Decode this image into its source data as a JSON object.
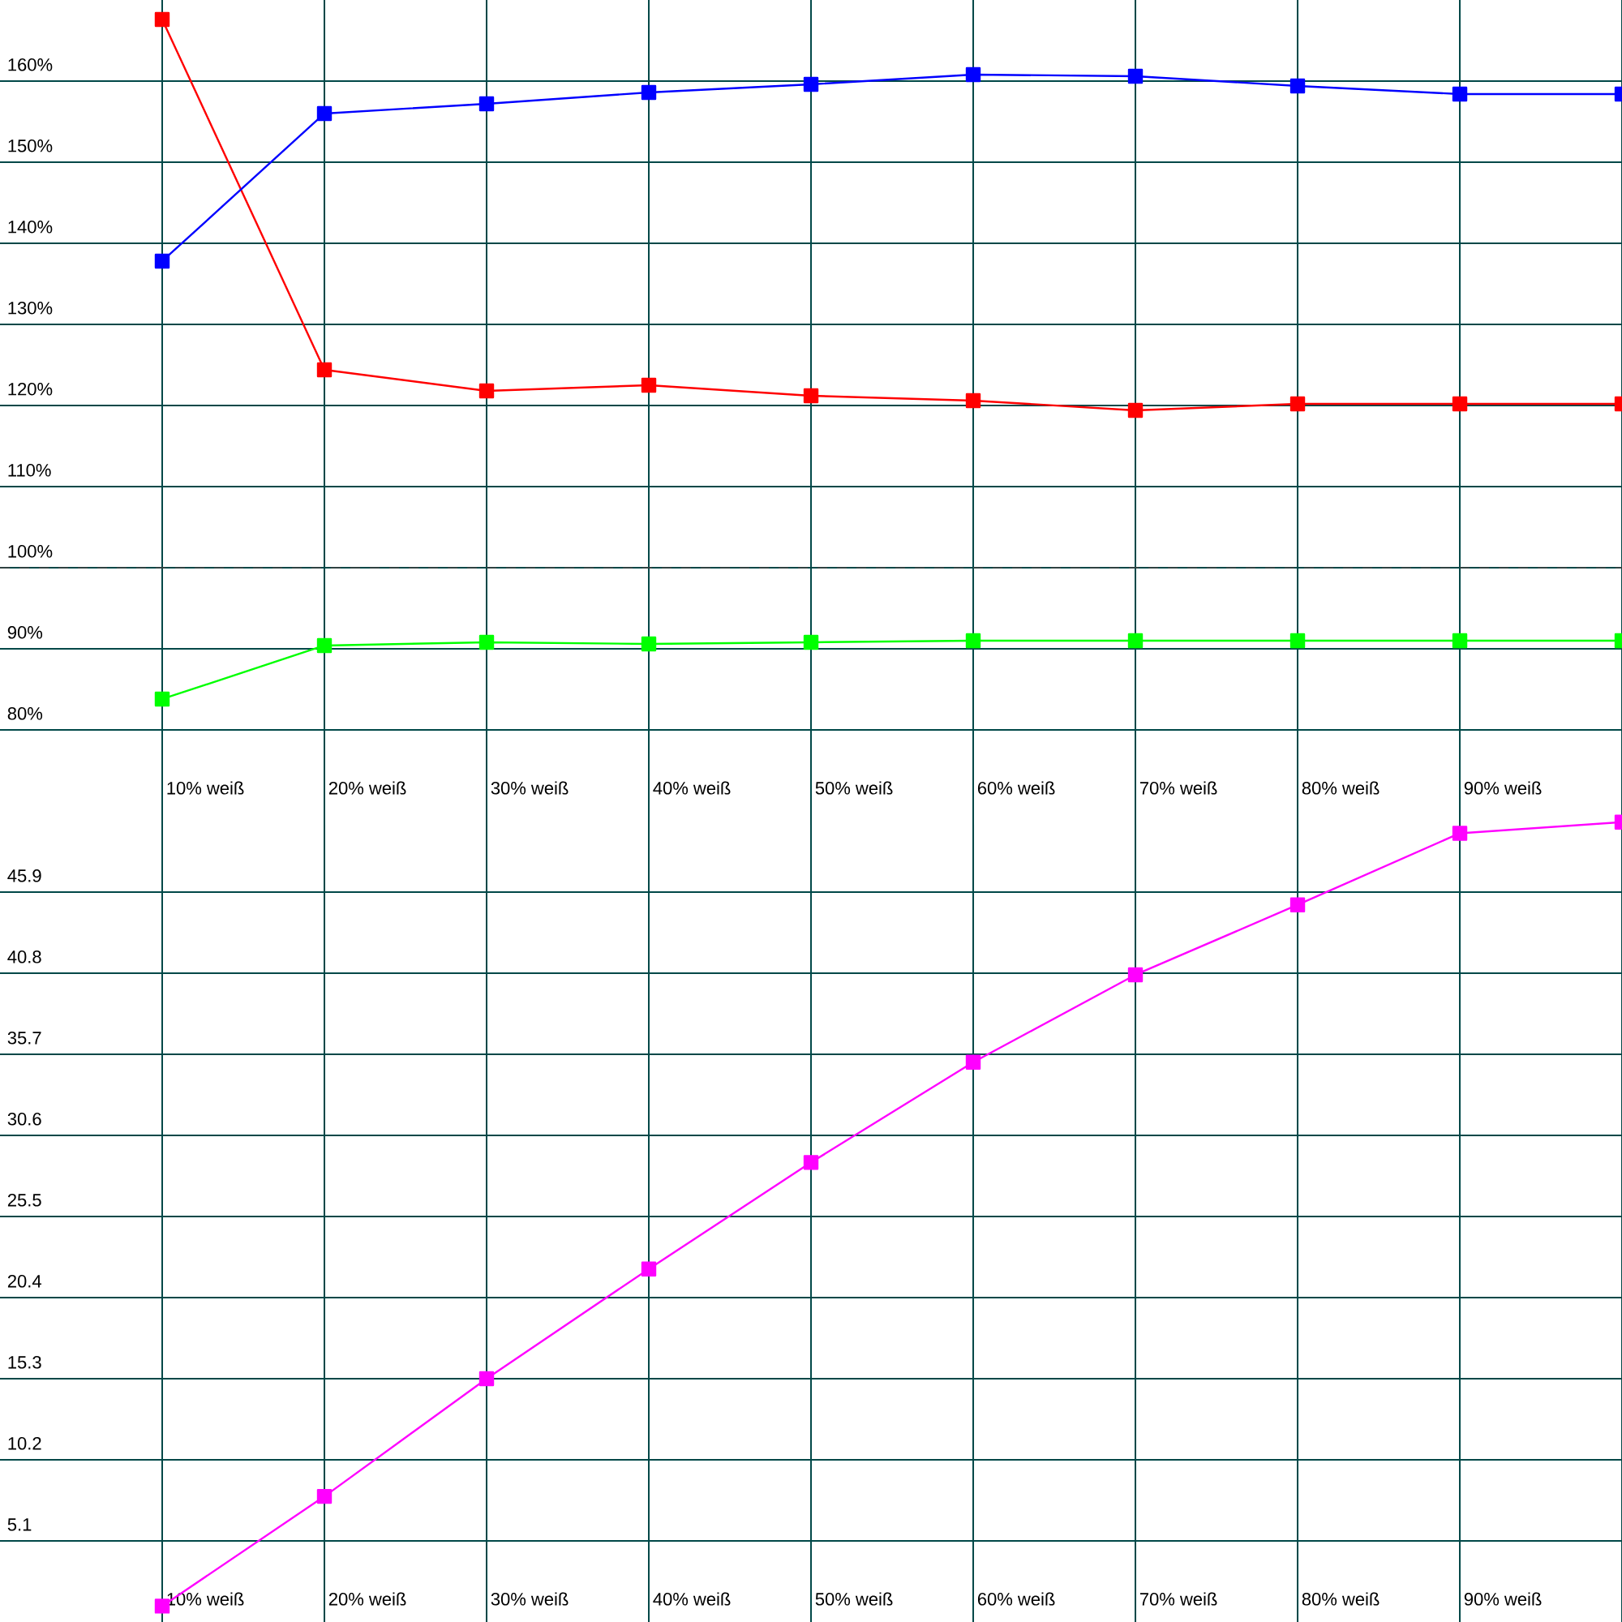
{
  "chart_data": [
    {
      "type": "line",
      "categories": [
        "10% weiß",
        "20% weiß",
        "30% weiß",
        "40% weiß",
        "50% weiß",
        "60% weiß",
        "70% weiß",
        "80% weiß",
        "90% weiß",
        null
      ],
      "series": [
        {
          "color": "#ff0000",
          "values": [
            167.6,
            124.4,
            121.8,
            122.5,
            121.2,
            120.6,
            119.4,
            120.2,
            120.2,
            120.2
          ]
        },
        {
          "color": "#0000ff",
          "values": [
            137.8,
            156.0,
            157.2,
            158.6,
            159.6,
            160.8,
            160.6,
            159.4,
            158.4,
            158.4
          ]
        },
        {
          "color": "#00ff00",
          "values": [
            83.8,
            90.4,
            90.8,
            90.6,
            90.8,
            91.0,
            91.0,
            91.0,
            91.0,
            91.0
          ]
        }
      ],
      "ylim": [
        70,
        170
      ],
      "yticks": [
        {
          "value": 80,
          "label": "80%"
        },
        {
          "value": 90,
          "label": "90%"
        },
        {
          "value": 100,
          "label": "100%"
        },
        {
          "value": 110,
          "label": "110%"
        },
        {
          "value": 120,
          "label": "120%"
        },
        {
          "value": 130,
          "label": "130%"
        },
        {
          "value": 140,
          "label": "140%"
        },
        {
          "value": 150,
          "label": "150%"
        },
        {
          "value": 160,
          "label": "160%"
        }
      ],
      "ref_lines": [
        {
          "axis": "y",
          "value": 100,
          "color": "#404040",
          "line_style": "dashed"
        }
      ],
      "grid": true,
      "marker": "square",
      "line_style": "solid"
    },
    {
      "type": "line",
      "categories": [
        "10% weiß",
        "20% weiß",
        "30% weiß",
        "40% weiß",
        "50% weiß",
        "60% weiß",
        "70% weiß",
        "80% weiß",
        "90% weiß",
        null
      ],
      "series": [
        {
          "color": "#ff00ff",
          "values": [
            1.0,
            7.9,
            15.3,
            22.2,
            28.9,
            35.2,
            40.7,
            45.1,
            49.6,
            50.3
          ]
        }
      ],
      "ylim": [
        0,
        51
      ],
      "yticks": [
        5.1,
        10.2,
        15.3,
        20.4,
        25.5,
        30.6,
        35.7,
        40.8,
        45.9
      ],
      "grid": true,
      "marker": "square",
      "line_style": "solid"
    }
  ]
}
